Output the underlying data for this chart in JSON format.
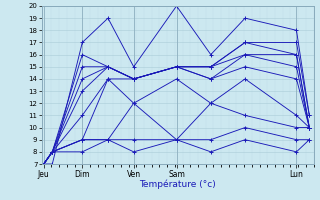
{
  "xlabel": "Température (°c)",
  "background_color": "#cce8f0",
  "grid_color_major": "#aaccd8",
  "grid_color_minor": "#c0dce8",
  "line_color": "#1a1ab8",
  "ylim": [
    7,
    20
  ],
  "ytick_min": 7,
  "ytick_max": 20,
  "day_labels": [
    "Jeu",
    "Dim",
    "Ven",
    "Sam",
    "Lun"
  ],
  "day_x": [
    0.0,
    0.9,
    2.1,
    3.1,
    5.9
  ],
  "xlim": [
    -0.05,
    6.3
  ],
  "series": [
    [
      7,
      7,
      17,
      19,
      15,
      20,
      16,
      19,
      18,
      11
    ],
    [
      7,
      8,
      16,
      15,
      14,
      15,
      15,
      17,
      17,
      11
    ],
    [
      7,
      8,
      15,
      15,
      14,
      15,
      15,
      17,
      16,
      10
    ],
    [
      7,
      8,
      14,
      15,
      14,
      15,
      14,
      16,
      16,
      10
    ],
    [
      7,
      8,
      13,
      15,
      14,
      15,
      15,
      16,
      15,
      10
    ],
    [
      7,
      8,
      11,
      14,
      14,
      15,
      14,
      15,
      14,
      10
    ],
    [
      7,
      8,
      9,
      14,
      12,
      14,
      12,
      14,
      11,
      10
    ],
    [
      7,
      8,
      9,
      9,
      12,
      9,
      12,
      11,
      10,
      10
    ],
    [
      7,
      8,
      9,
      9,
      9,
      9,
      9,
      10,
      9,
      9
    ],
    [
      7,
      8,
      8,
      9,
      8,
      9,
      8,
      9,
      8,
      9
    ]
  ],
  "x_pts": [
    0.0,
    0.2,
    0.9,
    1.5,
    2.1,
    3.1,
    3.9,
    4.7,
    5.9,
    6.2
  ]
}
